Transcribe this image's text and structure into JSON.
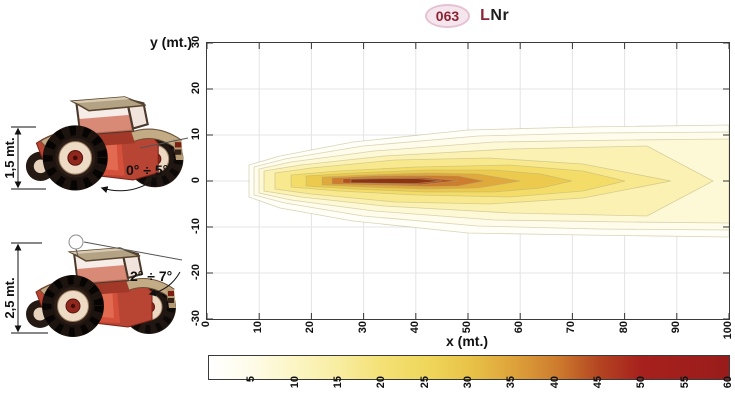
{
  "header": {
    "badge": "063",
    "code_red": "L",
    "code_black": "Nr"
  },
  "colors": {
    "badge_bg": "#f5e6ee",
    "badge_border": "#e5c2d3",
    "badge_text": "#8c2433",
    "code_red": "#8c2433",
    "code_black": "#1d1d1d",
    "axis": "#333333",
    "grid": "#e4e4e4",
    "plot_border": "#3a3a3a",
    "tractor_red": "#b84434"
  },
  "figures": {
    "top": {
      "height_label": "1,5 mt.",
      "angle_label": "0° ÷ 5°"
    },
    "bottom": {
      "height_label": "2,5 mt.",
      "angle_label": "2° ÷ 7°"
    }
  },
  "chart_data": {
    "type": "heatmap",
    "subtype": "filled-contour-beam-pattern",
    "title": "063 LNr",
    "xlabel": "x (mt.)",
    "ylabel": "y (mt.)",
    "xlim": [
      0,
      100
    ],
    "ylim": [
      -30,
      30
    ],
    "x_ticks": [
      0,
      10,
      20,
      30,
      40,
      50,
      60,
      70,
      80,
      90,
      100
    ],
    "y_ticks": [
      30,
      20,
      10,
      0,
      -10,
      -20,
      -30
    ],
    "grid": true,
    "beam": {
      "center_y": 0,
      "origin_x": 8,
      "hot_core": {
        "x_range": [
          27,
          45
        ],
        "y_half_width": 0.6,
        "approx_level": 50
      },
      "mid_orange": {
        "x_range": [
          22,
          60
        ],
        "y_half_width": 2.5,
        "approx_level": 35
      },
      "outer_extent": {
        "x_range": [
          8,
          100
        ],
        "y_half_width_at_x100": 12,
        "approx_level": 2
      }
    },
    "contour_levels": [
      2,
      5,
      10,
      15,
      20,
      25,
      30,
      35,
      40,
      45,
      50
    ],
    "contour_fill_colors": [
      "#fffef7",
      "#fffceb",
      "#fdf8d6",
      "#fbf1b2",
      "#f8e98f",
      "#f3dd68",
      "#ebca4e",
      "#dfa93c",
      "#cd7d2e",
      "#b2501f",
      "#8c3312"
    ],
    "colorbar": {
      "range": [
        0,
        60
      ],
      "ticks": [
        5,
        10,
        15,
        20,
        25,
        30,
        35,
        40,
        45,
        50,
        55,
        60
      ],
      "gradient_stops": [
        {
          "pos": 0.0,
          "color": "#ffffff"
        },
        {
          "pos": 0.08,
          "color": "#fefce9"
        },
        {
          "pos": 0.17,
          "color": "#fbf5c2"
        },
        {
          "pos": 0.25,
          "color": "#f8eda0"
        },
        {
          "pos": 0.33,
          "color": "#f4e176"
        },
        {
          "pos": 0.42,
          "color": "#efd75b"
        },
        {
          "pos": 0.5,
          "color": "#e8c348"
        },
        {
          "pos": 0.58,
          "color": "#dfa53b"
        },
        {
          "pos": 0.67,
          "color": "#cd7c2e"
        },
        {
          "pos": 0.75,
          "color": "#b44521"
        },
        {
          "pos": 0.83,
          "color": "#a7211d"
        },
        {
          "pos": 1.0,
          "color": "#991c1a"
        }
      ]
    }
  }
}
